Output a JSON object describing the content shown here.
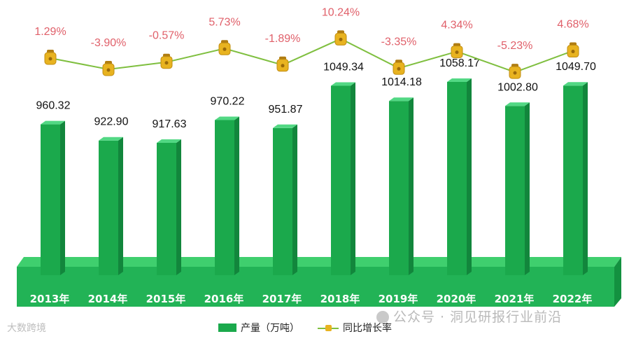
{
  "chart_data": {
    "type": "bar",
    "categories": [
      "2013年",
      "2014年",
      "2015年",
      "2016年",
      "2017年",
      "2018年",
      "2019年",
      "2020年",
      "2021年",
      "2022年"
    ],
    "series": [
      {
        "name": "产量（万吨）",
        "type": "bar",
        "values": [
          960.32,
          922.9,
          917.63,
          970.22,
          951.87,
          1049.34,
          1014.18,
          1058.17,
          1002.8,
          1049.7
        ],
        "labels": [
          "960.32",
          "922.90",
          "917.63",
          "970.22",
          "951.87",
          "1049.34",
          "1014.18",
          "1058.17",
          "1002.80",
          "1049.70"
        ]
      },
      {
        "name": "同比增长率",
        "type": "line",
        "values": [
          1.29,
          -3.9,
          -0.57,
          5.73,
          -1.89,
          10.24,
          -3.35,
          4.34,
          -5.23,
          4.68
        ],
        "labels": [
          "1.29%",
          "-3.90%",
          "-0.57%",
          "5.73%",
          "-1.89%",
          "10.24%",
          "-3.35%",
          "4.34%",
          "-5.23%",
          "4.68%"
        ]
      }
    ],
    "colors": {
      "bar": "#1ba94c",
      "line": "#7fbf3f",
      "marker": "#e8b320",
      "growth_label": "#e0606a",
      "base": "#22b356"
    }
  },
  "legend": {
    "bar_label": "产量（万吨）",
    "line_label": "同比增长率"
  },
  "watermark": "公众号 · 洞见研报行业前沿",
  "logo": "大数跨境"
}
